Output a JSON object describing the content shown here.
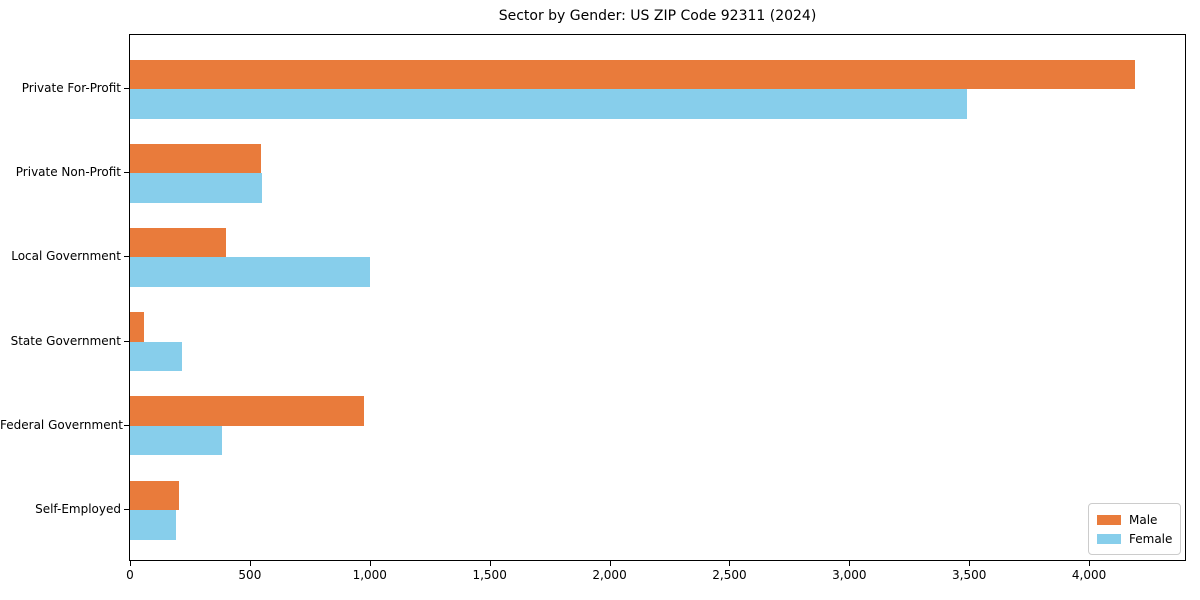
{
  "chart_data": {
    "type": "bar",
    "orientation": "horizontal",
    "title": "Sector by Gender: US ZIP Code 92311 (2024)",
    "categories": [
      "Private For-Profit",
      "Private Non-Profit",
      "Local Government",
      "State Government",
      "Federal Government",
      "Self-Employed"
    ],
    "series": [
      {
        "name": "Male",
        "color": "#e97b3b",
        "values": [
          4190,
          545,
          400,
          60,
          975,
          205
        ]
      },
      {
        "name": "Female",
        "color": "#87ceeb",
        "values": [
          3490,
          550,
          1000,
          215,
          385,
          190
        ]
      }
    ],
    "xlabel": "",
    "ylabel": "",
    "xlim": [
      0,
      4400
    ],
    "xticks": [
      0,
      500,
      1000,
      1500,
      2000,
      2500,
      3000,
      3500,
      4000
    ],
    "xtick_labels": [
      "0",
      "500",
      "1,000",
      "1,500",
      "2,000",
      "2,500",
      "3,000",
      "3,500",
      "4,000"
    ],
    "grid": false,
    "legend": {
      "position": "lower right"
    },
    "colors": {
      "background": "#ffffff",
      "spine": "#000000",
      "text": "#000000",
      "legend_border": "#cccccc"
    }
  }
}
